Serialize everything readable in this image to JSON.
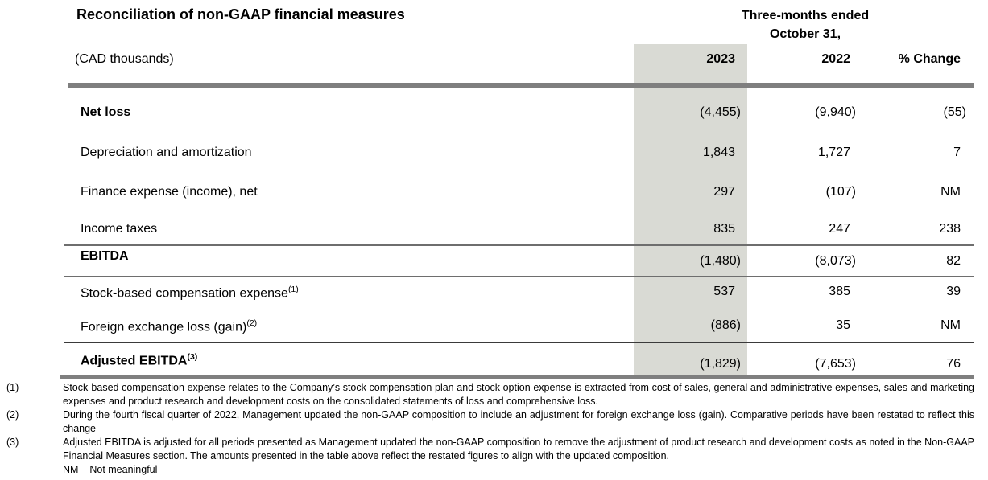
{
  "document": {
    "title": "Reconciliation of non-GAAP financial measures",
    "period": {
      "line1": "Three-months ended",
      "line2": "October 31,"
    },
    "unit_label": "(CAD thousands)"
  },
  "table": {
    "columns": [
      "2023",
      "2022",
      "% Change"
    ],
    "rows": [
      {
        "label": "Net loss",
        "sup": "",
        "bold": true,
        "total": false,
        "values": [
          "(4,455)",
          "(9,940)",
          "(55)"
        ]
      },
      {
        "label": "Depreciation and amortization",
        "sup": "",
        "bold": false,
        "total": false,
        "values": [
          "1,843",
          "1,727",
          "7"
        ]
      },
      {
        "label": "Finance expense (income), net",
        "sup": "",
        "bold": false,
        "total": false,
        "values": [
          "297",
          "(107)",
          "NM"
        ]
      },
      {
        "label": "Income taxes",
        "sup": "",
        "bold": false,
        "total": false,
        "values": [
          "835",
          "247",
          "238"
        ]
      },
      {
        "label": "EBITDA",
        "sup": "",
        "bold": true,
        "total": true,
        "values": [
          "(1,480)",
          "(8,073)",
          "82"
        ]
      },
      {
        "label": "Stock-based compensation expense",
        "sup": "(1)",
        "bold": false,
        "total": false,
        "values": [
          "537",
          "385",
          "39"
        ]
      },
      {
        "label": "Foreign exchange loss (gain)",
        "sup": "(2)",
        "bold": false,
        "total": false,
        "values": [
          "(886)",
          "35",
          "NM"
        ]
      },
      {
        "label": "Adjusted EBITDA",
        "sup": "(3)",
        "bold": true,
        "total": true,
        "values": [
          "(1,829)",
          "(7,653)",
          "76"
        ]
      }
    ]
  },
  "footnotes": [
    {
      "marker": "(1)",
      "text": "Stock-based compensation expense relates to the Company’s stock compensation plan and stock option expense is extracted from cost of sales, general and administrative expenses, sales and marketing expenses and product research and development costs on the consolidated statements of loss and comprehensive loss."
    },
    {
      "marker": "(2)",
      "text": "During the fourth fiscal quarter of 2022, Management updated the non-GAAP composition to include an adjustment for foreign exchange loss (gain). Comparative periods have been restated to reflect this change"
    },
    {
      "marker": "(3)",
      "text": "Adjusted EBITDA is adjusted for all periods presented as Management updated the non-GAAP composition to remove the adjustment of product research and development costs as noted in the Non-GAAP Financial Measures section. The amounts presented in the table above reflect the restated figures to align with the updated composition."
    }
  ],
  "nm_note": "NM – Not meaningful",
  "colors": {
    "highlight_column": "#d9dad4",
    "rule_heavy": "#7f7f7f",
    "rule_thin": "#6e6e6e",
    "text": "#000000"
  }
}
